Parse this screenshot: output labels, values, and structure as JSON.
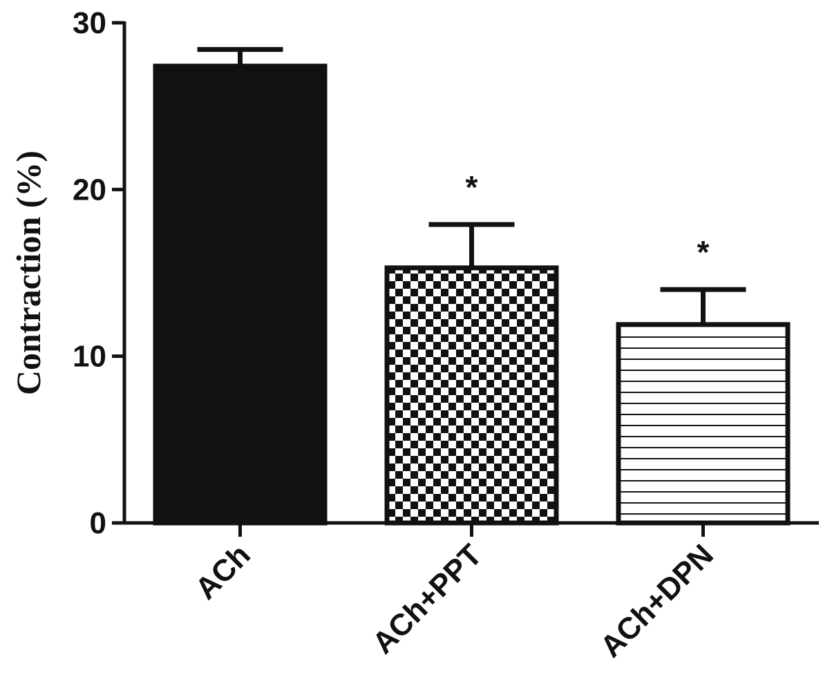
{
  "chart_data": {
    "type": "bar",
    "categories": [
      "ACh",
      "ACh+PPT",
      "ACh+DPN"
    ],
    "values": [
      27.4,
      15.3,
      11.9
    ],
    "errors": [
      1.0,
      2.6,
      2.1
    ],
    "significance": [
      "",
      "*",
      "*"
    ],
    "patterns": [
      "solid",
      "checker",
      "hlines"
    ],
    "colors": {
      "bar": "#111111",
      "fill": "#ffffff"
    },
    "ylabel": "Contraction (%)",
    "yticks": [
      0,
      10,
      20,
      30
    ],
    "ylim": [
      0,
      30
    ],
    "grid": false,
    "legend": "none"
  }
}
